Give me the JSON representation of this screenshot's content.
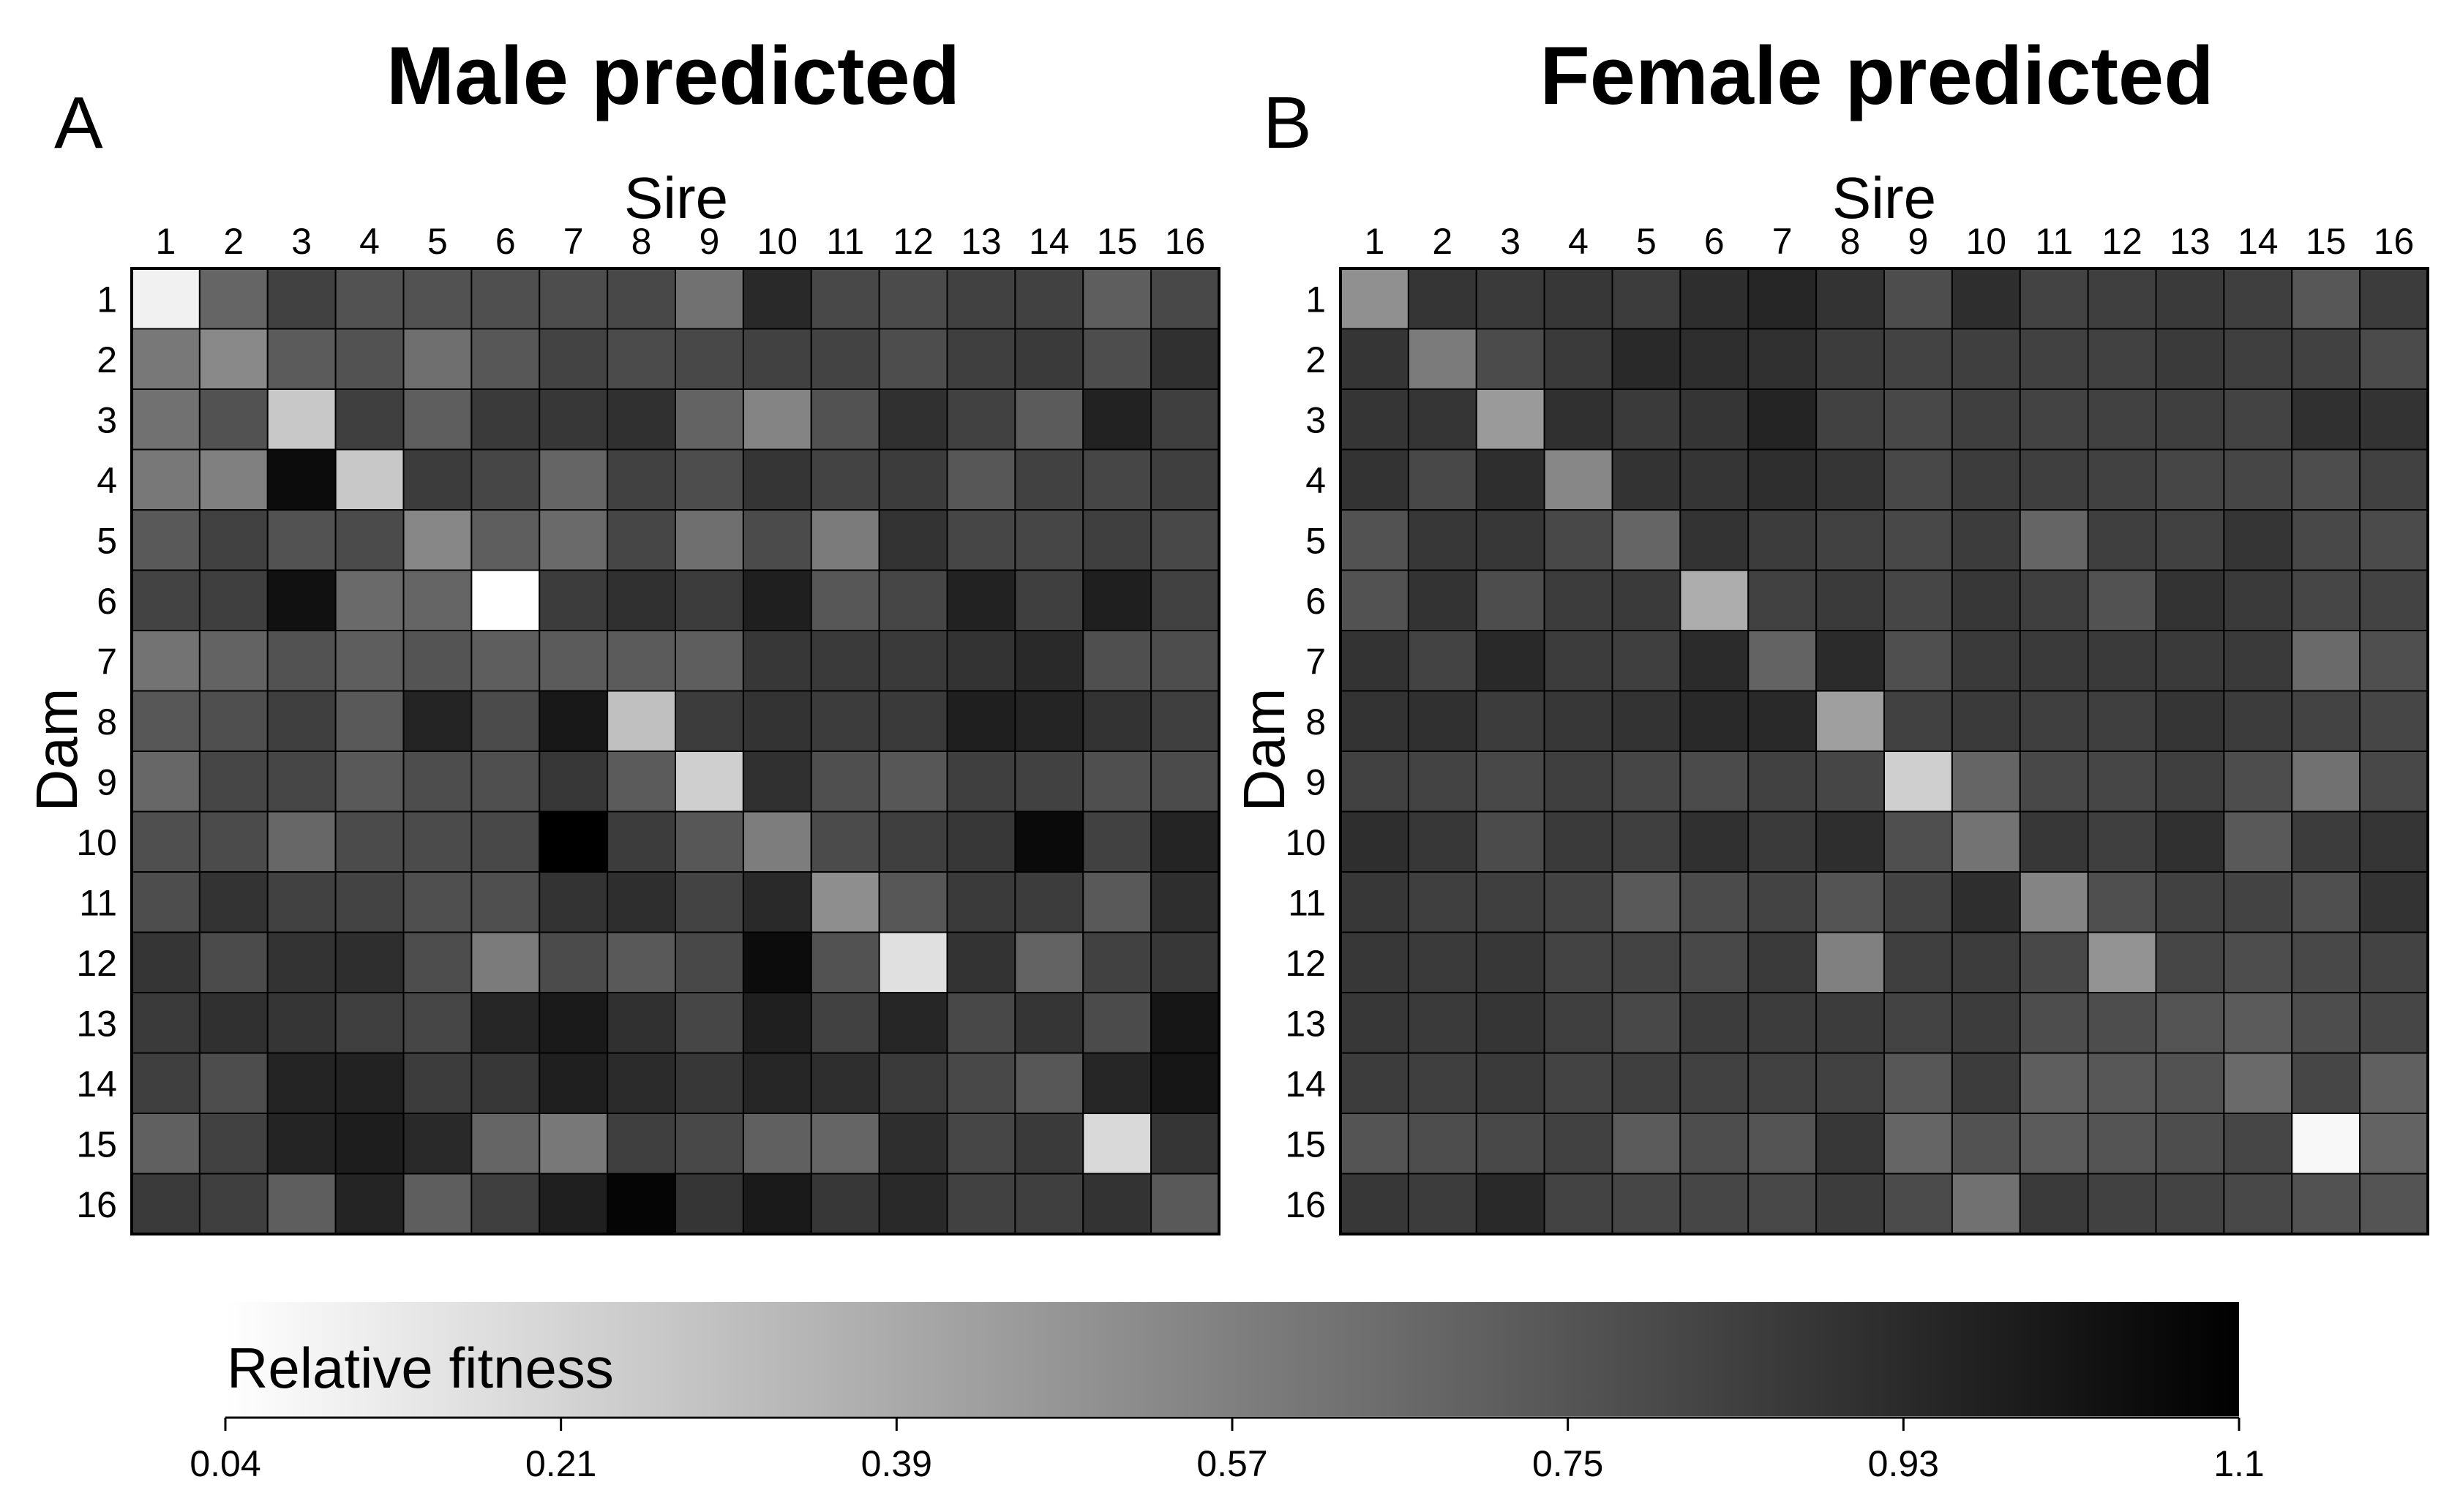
{
  "chart_data": {
    "type": "heatmap",
    "colorbar": {
      "title": "Relative fitness",
      "ticks": [
        "0.04",
        "0.21",
        "0.39",
        "0.57",
        "0.75",
        "0.93",
        "1.1"
      ],
      "range": [
        0.04,
        1.1
      ],
      "colormap": "white-to-black"
    },
    "panels": [
      {
        "letter": "A",
        "title": "Male predicted",
        "xlabel": "Sire",
        "ylabel": "Dam",
        "x_categories": [
          "1",
          "2",
          "3",
          "4",
          "5",
          "6",
          "7",
          "8",
          "9",
          "10",
          "11",
          "12",
          "13",
          "14",
          "15",
          "16"
        ],
        "y_categories": [
          "1",
          "2",
          "3",
          "4",
          "5",
          "6",
          "7",
          "8",
          "9",
          "10",
          "11",
          "12",
          "13",
          "14",
          "15",
          "16"
        ],
        "values": [
          [
            0.1,
            0.68,
            0.83,
            0.76,
            0.76,
            0.77,
            0.78,
            0.8,
            0.63,
            0.93,
            0.8,
            0.79,
            0.83,
            0.83,
            0.71,
            0.8
          ],
          [
            0.6,
            0.53,
            0.72,
            0.76,
            0.64,
            0.74,
            0.82,
            0.79,
            0.8,
            0.83,
            0.82,
            0.78,
            0.84,
            0.86,
            0.78,
            0.9
          ],
          [
            0.63,
            0.76,
            0.27,
            0.84,
            0.71,
            0.86,
            0.87,
            0.9,
            0.69,
            0.55,
            0.76,
            0.9,
            0.83,
            0.72,
            0.96,
            0.84
          ],
          [
            0.6,
            0.57,
            1.05,
            0.27,
            0.85,
            0.81,
            0.68,
            0.83,
            0.78,
            0.88,
            0.82,
            0.85,
            0.74,
            0.83,
            0.81,
            0.84
          ],
          [
            0.73,
            0.83,
            0.76,
            0.79,
            0.54,
            0.71,
            0.66,
            0.81,
            0.64,
            0.79,
            0.59,
            0.89,
            0.81,
            0.81,
            0.84,
            0.8
          ],
          [
            0.82,
            0.84,
            1.03,
            0.66,
            0.68,
            0.04,
            0.85,
            0.9,
            0.85,
            0.97,
            0.74,
            0.81,
            0.96,
            0.84,
            0.97,
            0.83
          ],
          [
            0.62,
            0.69,
            0.76,
            0.71,
            0.75,
            0.71,
            0.72,
            0.72,
            0.71,
            0.87,
            0.86,
            0.86,
            0.89,
            0.93,
            0.77,
            0.78
          ],
          [
            0.74,
            0.77,
            0.84,
            0.73,
            0.95,
            0.79,
            1.0,
            0.3,
            0.85,
            0.89,
            0.85,
            0.86,
            0.97,
            0.95,
            0.89,
            0.84
          ],
          [
            0.67,
            0.81,
            0.81,
            0.73,
            0.78,
            0.77,
            0.87,
            0.72,
            0.24,
            0.9,
            0.77,
            0.74,
            0.84,
            0.83,
            0.77,
            0.79
          ],
          [
            0.77,
            0.79,
            0.67,
            0.79,
            0.79,
            0.8,
            1.1,
            0.85,
            0.74,
            0.58,
            0.79,
            0.84,
            0.87,
            1.06,
            0.83,
            0.95
          ],
          [
            0.78,
            0.89,
            0.83,
            0.82,
            0.77,
            0.77,
            0.89,
            0.91,
            0.82,
            0.93,
            0.51,
            0.74,
            0.86,
            0.85,
            0.73,
            0.91
          ],
          [
            0.88,
            0.79,
            0.89,
            0.91,
            0.78,
            0.59,
            0.79,
            0.73,
            0.8,
            1.05,
            0.76,
            0.17,
            0.89,
            0.69,
            0.83,
            0.87
          ],
          [
            0.86,
            0.9,
            0.88,
            0.84,
            0.81,
            0.94,
            0.99,
            0.9,
            0.81,
            0.97,
            0.83,
            0.94,
            0.8,
            0.88,
            0.79,
            1.01
          ],
          [
            0.84,
            0.78,
            0.95,
            0.96,
            0.85,
            0.87,
            0.97,
            0.92,
            0.87,
            0.94,
            0.91,
            0.86,
            0.8,
            0.74,
            0.94,
            1.01
          ],
          [
            0.7,
            0.83,
            0.95,
            0.98,
            0.93,
            0.68,
            0.6,
            0.84,
            0.8,
            0.7,
            0.68,
            0.91,
            0.81,
            0.86,
            0.2,
            0.88
          ],
          [
            0.86,
            0.84,
            0.71,
            0.95,
            0.71,
            0.84,
            0.97,
            1.08,
            0.88,
            0.99,
            0.87,
            0.93,
            0.83,
            0.84,
            0.89,
            0.73
          ]
        ]
      },
      {
        "letter": "B",
        "title": "Female predicted",
        "xlabel": "Sire",
        "ylabel": "Dam",
        "x_categories": [
          "1",
          "2",
          "3",
          "4",
          "5",
          "6",
          "7",
          "8",
          "9",
          "10",
          "11",
          "12",
          "13",
          "14",
          "15",
          "16"
        ],
        "y_categories": [
          "1",
          "2",
          "3",
          "4",
          "5",
          "6",
          "7",
          "8",
          "9",
          "10",
          "11",
          "12",
          "13",
          "14",
          "15",
          "16"
        ],
        "values": [
          [
            0.5,
            0.88,
            0.86,
            0.87,
            0.85,
            0.91,
            0.94,
            0.89,
            0.78,
            0.91,
            0.82,
            0.84,
            0.86,
            0.84,
            0.74,
            0.85
          ],
          [
            0.88,
            0.59,
            0.79,
            0.86,
            0.93,
            0.91,
            0.9,
            0.85,
            0.82,
            0.84,
            0.83,
            0.83,
            0.86,
            0.84,
            0.83,
            0.79
          ],
          [
            0.88,
            0.88,
            0.46,
            0.9,
            0.86,
            0.88,
            0.95,
            0.83,
            0.8,
            0.84,
            0.82,
            0.83,
            0.84,
            0.82,
            0.9,
            0.89
          ],
          [
            0.89,
            0.8,
            0.91,
            0.54,
            0.89,
            0.88,
            0.91,
            0.88,
            0.8,
            0.85,
            0.84,
            0.83,
            0.81,
            0.81,
            0.78,
            0.83
          ],
          [
            0.76,
            0.87,
            0.87,
            0.8,
            0.68,
            0.89,
            0.85,
            0.83,
            0.8,
            0.85,
            0.68,
            0.84,
            0.83,
            0.88,
            0.8,
            0.79
          ],
          [
            0.76,
            0.89,
            0.78,
            0.85,
            0.86,
            0.38,
            0.83,
            0.86,
            0.81,
            0.87,
            0.84,
            0.76,
            0.89,
            0.86,
            0.81,
            0.82
          ],
          [
            0.89,
            0.82,
            0.93,
            0.85,
            0.84,
            0.92,
            0.69,
            0.92,
            0.77,
            0.86,
            0.86,
            0.86,
            0.86,
            0.86,
            0.66,
            0.77
          ],
          [
            0.89,
            0.9,
            0.85,
            0.87,
            0.89,
            0.93,
            0.93,
            0.44,
            0.83,
            0.86,
            0.84,
            0.84,
            0.88,
            0.85,
            0.82,
            0.81
          ],
          [
            0.83,
            0.82,
            0.8,
            0.84,
            0.81,
            0.79,
            0.83,
            0.81,
            0.24,
            0.68,
            0.8,
            0.81,
            0.84,
            0.78,
            0.63,
            0.8
          ],
          [
            0.91,
            0.87,
            0.79,
            0.86,
            0.84,
            0.9,
            0.86,
            0.91,
            0.77,
            0.62,
            0.87,
            0.84,
            0.9,
            0.73,
            0.85,
            0.88
          ],
          [
            0.87,
            0.84,
            0.84,
            0.82,
            0.73,
            0.79,
            0.82,
            0.75,
            0.82,
            0.91,
            0.55,
            0.77,
            0.83,
            0.82,
            0.77,
            0.89
          ],
          [
            0.87,
            0.86,
            0.87,
            0.82,
            0.82,
            0.8,
            0.86,
            0.57,
            0.84,
            0.85,
            0.8,
            0.49,
            0.81,
            0.78,
            0.8,
            0.82
          ],
          [
            0.87,
            0.86,
            0.88,
            0.84,
            0.8,
            0.85,
            0.85,
            0.85,
            0.82,
            0.85,
            0.78,
            0.78,
            0.75,
            0.72,
            0.78,
            0.81
          ],
          [
            0.85,
            0.84,
            0.86,
            0.82,
            0.84,
            0.83,
            0.83,
            0.83,
            0.74,
            0.85,
            0.71,
            0.74,
            0.76,
            0.66,
            0.81,
            0.7
          ],
          [
            0.75,
            0.78,
            0.8,
            0.83,
            0.72,
            0.78,
            0.75,
            0.87,
            0.68,
            0.76,
            0.72,
            0.75,
            0.78,
            0.81,
            0.07,
            0.69
          ],
          [
            0.87,
            0.85,
            0.93,
            0.82,
            0.81,
            0.81,
            0.8,
            0.85,
            0.79,
            0.63,
            0.86,
            0.83,
            0.82,
            0.8,
            0.76,
            0.75
          ]
        ]
      }
    ]
  }
}
